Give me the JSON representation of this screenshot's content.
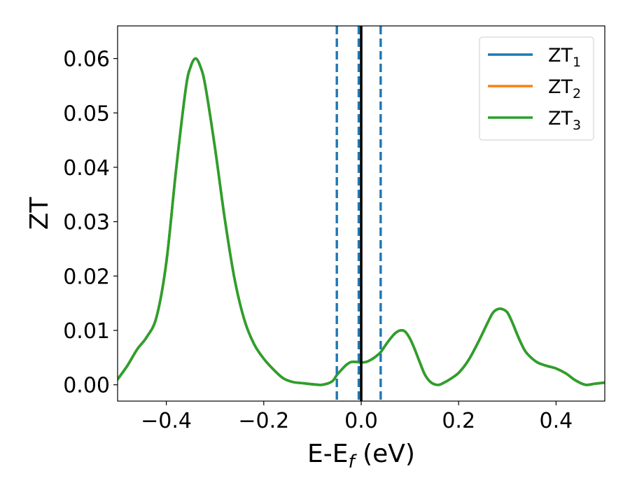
{
  "chart_data": {
    "type": "line",
    "title": "",
    "xlabel": {
      "main": "E-E",
      "sub": "f",
      "tail": " (eV)"
    },
    "ylabel": "ZT",
    "xlim": [
      -0.5,
      0.5
    ],
    "ylim": [
      -0.003,
      0.066
    ],
    "x_ticks": [
      -0.4,
      -0.2,
      0.0,
      0.2,
      0.4
    ],
    "x_tick_labels": [
      "−0.4",
      "−0.2",
      "0.0",
      "0.2",
      "0.4"
    ],
    "y_ticks": [
      0.0,
      0.01,
      0.02,
      0.03,
      0.04,
      0.05,
      0.06
    ],
    "y_tick_labels": [
      "0.00",
      "0.01",
      "0.02",
      "0.03",
      "0.04",
      "0.05",
      "0.06"
    ],
    "grid": false,
    "legend_position": "top-right",
    "x": [
      -0.5,
      -0.48,
      -0.46,
      -0.44,
      -0.42,
      -0.4,
      -0.38,
      -0.36,
      -0.35,
      -0.34,
      -0.33,
      -0.32,
      -0.3,
      -0.28,
      -0.26,
      -0.24,
      -0.22,
      -0.2,
      -0.18,
      -0.16,
      -0.14,
      -0.12,
      -0.1,
      -0.08,
      -0.06,
      -0.05,
      -0.04,
      -0.03,
      -0.02,
      -0.01,
      0.0,
      0.01,
      0.02,
      0.03,
      0.04,
      0.05,
      0.06,
      0.07,
      0.08,
      0.09,
      0.1,
      0.11,
      0.12,
      0.13,
      0.14,
      0.15,
      0.16,
      0.17,
      0.18,
      0.2,
      0.22,
      0.24,
      0.26,
      0.27,
      0.28,
      0.29,
      0.3,
      0.31,
      0.32,
      0.33,
      0.34,
      0.36,
      0.38,
      0.4,
      0.42,
      0.44,
      0.46,
      0.48,
      0.5
    ],
    "series": [
      {
        "name": "ZT1",
        "label_main": "ZT",
        "label_sub": "1",
        "color": "#1f77b4",
        "values": [
          0.001,
          0.0035,
          0.0065,
          0.0088,
          0.0125,
          0.0225,
          0.0395,
          0.0545,
          0.0585,
          0.06,
          0.0585,
          0.055,
          0.0435,
          0.0305,
          0.0195,
          0.012,
          0.0075,
          0.0048,
          0.0028,
          0.0012,
          0.0005,
          0.0003,
          0.0001,
          0.0,
          0.0006,
          0.0018,
          0.0028,
          0.0037,
          0.0042,
          0.0042,
          0.0041,
          0.0042,
          0.0046,
          0.0052,
          0.006,
          0.0073,
          0.0085,
          0.0095,
          0.01,
          0.0098,
          0.0085,
          0.0065,
          0.0042,
          0.002,
          0.0007,
          0.0001,
          0.0,
          0.0004,
          0.0009,
          0.0022,
          0.0045,
          0.0078,
          0.0115,
          0.0132,
          0.0139,
          0.0139,
          0.0133,
          0.0115,
          0.0093,
          0.0073,
          0.0058,
          0.0042,
          0.0035,
          0.003,
          0.0021,
          0.0008,
          0.0,
          0.0002,
          0.0004
        ]
      },
      {
        "name": "ZT2",
        "label_main": "ZT",
        "label_sub": "2",
        "color": "#ff7f0e",
        "values": [
          0.001,
          0.0035,
          0.0065,
          0.0088,
          0.0125,
          0.0225,
          0.0395,
          0.0545,
          0.0585,
          0.06,
          0.0585,
          0.055,
          0.0435,
          0.0305,
          0.0195,
          0.012,
          0.0075,
          0.0048,
          0.0028,
          0.0012,
          0.0005,
          0.0003,
          0.0001,
          0.0,
          0.0006,
          0.0018,
          0.0028,
          0.0037,
          0.0042,
          0.0042,
          0.0041,
          0.0042,
          0.0046,
          0.0052,
          0.006,
          0.0073,
          0.0085,
          0.0095,
          0.01,
          0.0098,
          0.0085,
          0.0065,
          0.0042,
          0.002,
          0.0007,
          0.0001,
          0.0,
          0.0004,
          0.0009,
          0.0022,
          0.0045,
          0.0078,
          0.0115,
          0.0132,
          0.0139,
          0.0139,
          0.0133,
          0.0115,
          0.0093,
          0.0073,
          0.0058,
          0.0042,
          0.0035,
          0.003,
          0.0021,
          0.0008,
          0.0,
          0.0002,
          0.0004
        ]
      },
      {
        "name": "ZT3",
        "label_main": "ZT",
        "label_sub": "3",
        "color": "#2ca02c",
        "values": [
          0.001,
          0.0035,
          0.0065,
          0.0088,
          0.0125,
          0.0225,
          0.0395,
          0.0545,
          0.0585,
          0.06,
          0.0585,
          0.055,
          0.0435,
          0.0305,
          0.0195,
          0.012,
          0.0075,
          0.0048,
          0.0028,
          0.0012,
          0.0005,
          0.0003,
          0.0001,
          0.0,
          0.0006,
          0.0018,
          0.0028,
          0.0037,
          0.0042,
          0.0042,
          0.0041,
          0.0042,
          0.0046,
          0.0052,
          0.006,
          0.0073,
          0.0085,
          0.0095,
          0.01,
          0.0098,
          0.0085,
          0.0065,
          0.0042,
          0.002,
          0.0007,
          0.0001,
          0.0,
          0.0004,
          0.0009,
          0.0022,
          0.0045,
          0.0078,
          0.0115,
          0.0132,
          0.0139,
          0.0139,
          0.0133,
          0.0115,
          0.0093,
          0.0073,
          0.0058,
          0.0042,
          0.0035,
          0.003,
          0.0021,
          0.0008,
          0.0,
          0.0002,
          0.0004
        ]
      }
    ],
    "vertical_lines": [
      {
        "x": -0.05,
        "style": "dashed",
        "color": "#1f77b4"
      },
      {
        "x": -0.005,
        "style": "dashed",
        "color": "#1f77b4"
      },
      {
        "x": 0.04,
        "style": "dashed",
        "color": "#1f77b4"
      },
      {
        "x": 0.0,
        "style": "solid",
        "color": "#000000"
      }
    ]
  }
}
